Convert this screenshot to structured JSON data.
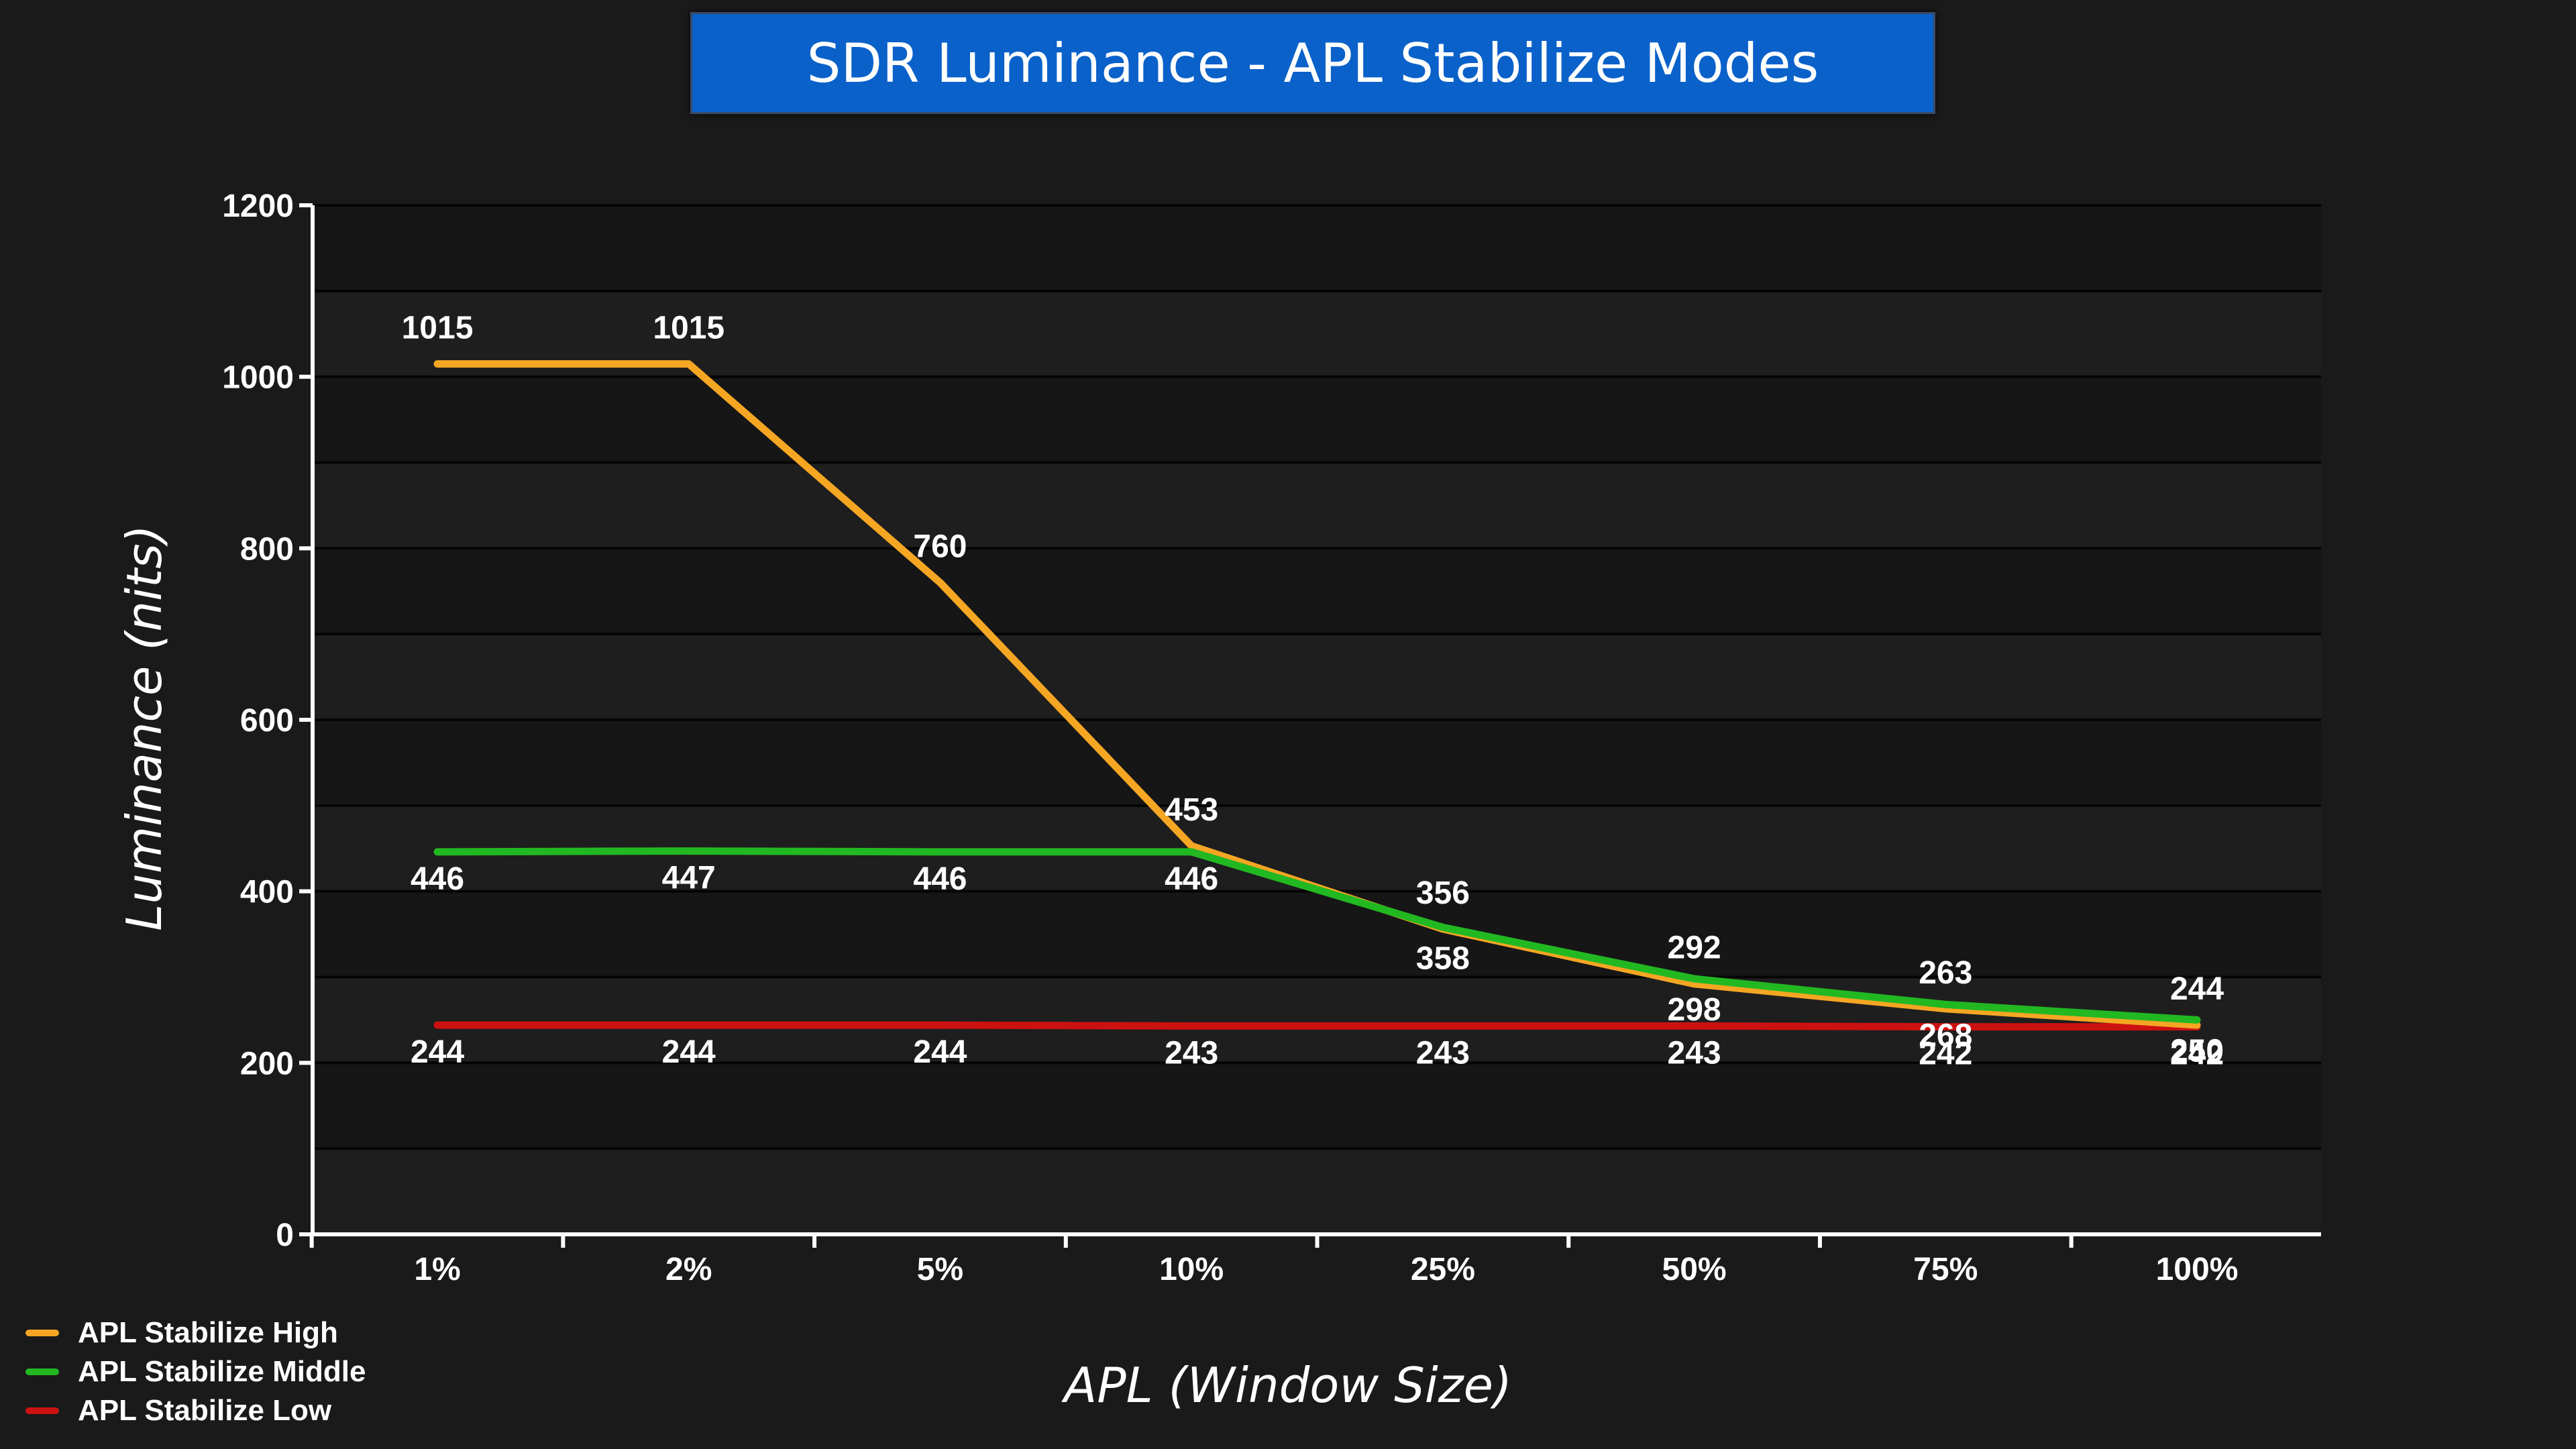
{
  "chart_data": {
    "type": "line",
    "title": "SDR Luminance - APL Stabilize Modes",
    "xlabel": "APL (Window Size)",
    "ylabel": "Luminance (nits)",
    "categories": [
      "1%",
      "2%",
      "5%",
      "10%",
      "25%",
      "50%",
      "75%",
      "100%"
    ],
    "ylim": [
      0,
      1200
    ],
    "yticks": [
      0,
      200,
      400,
      600,
      800,
      1000,
      1200
    ],
    "yticks_labels": [
      "0",
      "200",
      "400",
      "600",
      "800",
      "1000",
      "1200"
    ],
    "grid": true,
    "legend_position": "bottom-left",
    "series": [
      {
        "name": "APL Stabilize High",
        "color": "#f5a623",
        "values": [
          1015,
          1015,
          760,
          453,
          356,
          292,
          263,
          244
        ],
        "labels": [
          "1015",
          "1015",
          "760",
          "453",
          "356",
          "292",
          "263",
          "244"
        ]
      },
      {
        "name": "APL Stabilize Middle",
        "color": "#22b822",
        "values": [
          446,
          447,
          446,
          446,
          358,
          298,
          268,
          250
        ],
        "labels": [
          "446",
          "447",
          "446",
          "446",
          "358",
          "298",
          "268",
          "250"
        ]
      },
      {
        "name": "APL Stabilize Low",
        "color": "#cc1111",
        "values": [
          244,
          244,
          244,
          243,
          243,
          243,
          242,
          242
        ],
        "labels": [
          "244",
          "244",
          "244",
          "243",
          "243",
          "243",
          "242",
          "242"
        ]
      }
    ]
  }
}
